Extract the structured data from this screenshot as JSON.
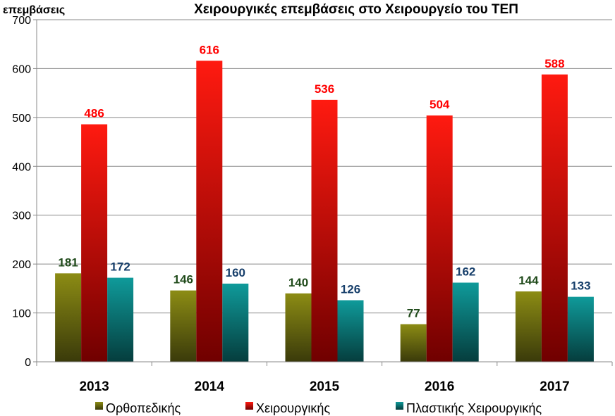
{
  "chart_data": {
    "type": "bar",
    "title": "Χειρουργικές επεμβάσεις στο Χειρουργείο του ΤΕΠ",
    "ylabel": "επεμβάσεις",
    "xlabel": "",
    "ylim": [
      0,
      700
    ],
    "yticks": [
      0,
      100,
      200,
      300,
      400,
      500,
      600,
      700
    ],
    "grid": true,
    "legend_position": "bottom",
    "categories": [
      "2013",
      "2014",
      "2015",
      "2016",
      "2017"
    ],
    "series": [
      {
        "name": "Ορθοπεδικής",
        "values": [
          181,
          146,
          140,
          77,
          144
        ],
        "color_light": "#8c8c14",
        "color_dark": "#3a3a0a",
        "label_color": "#1f4a1a"
      },
      {
        "name": "Χειρουργικής",
        "values": [
          486,
          616,
          536,
          504,
          588
        ],
        "color_light": "#ff1a10",
        "color_dark": "#700000",
        "label_color": "#ff0000"
      },
      {
        "name": "Πλαστικής Χειρουργικής",
        "values": [
          172,
          160,
          126,
          162,
          133
        ],
        "color_light": "#0f9a9a",
        "color_dark": "#053d3d",
        "label_color": "#173f6b"
      }
    ]
  }
}
